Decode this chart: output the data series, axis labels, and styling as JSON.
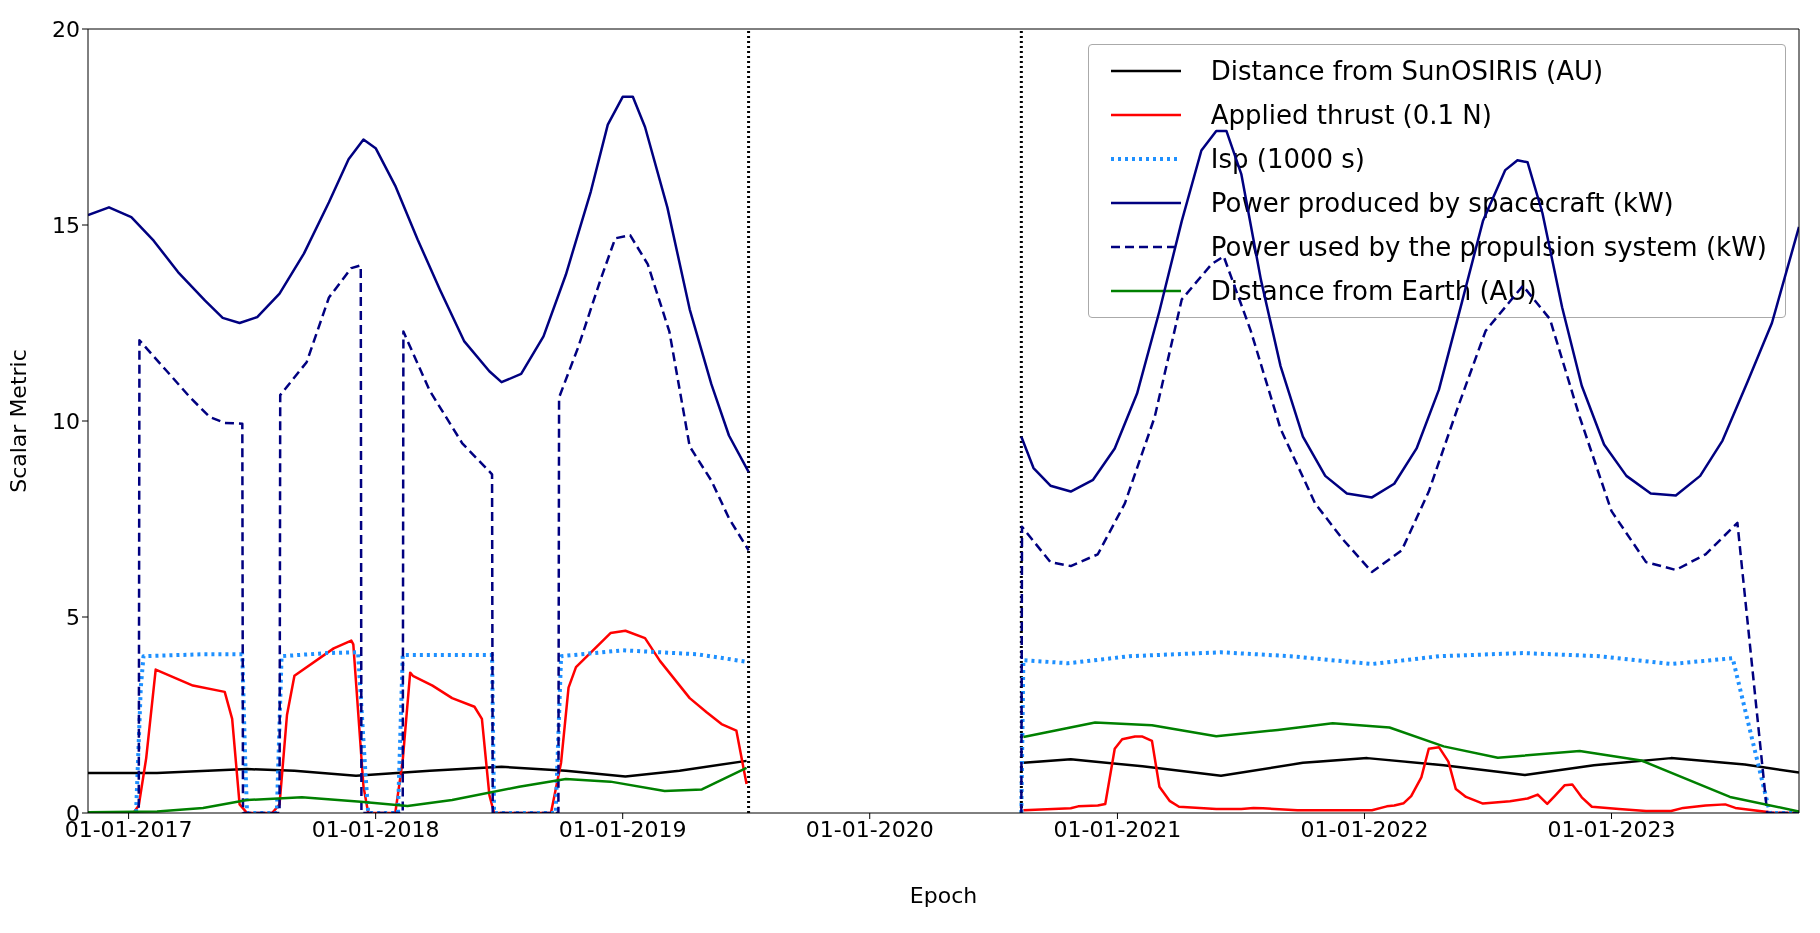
{
  "chart_data": {
    "type": "line",
    "xlabel": "Epoch",
    "ylabel": "Scalar Metric",
    "xlim": [
      "2016-11-02",
      "2023-10-05"
    ],
    "xticks": [
      {
        "value": "2017-01-01",
        "label": "01-01-2017"
      },
      {
        "value": "2018-01-01",
        "label": "01-01-2018"
      },
      {
        "value": "2019-01-01",
        "label": "01-01-2019"
      },
      {
        "value": "2020-01-01",
        "label": "01-01-2020"
      },
      {
        "value": "2021-01-01",
        "label": "01-01-2021"
      },
      {
        "value": "2022-01-01",
        "label": "01-01-2022"
      },
      {
        "value": "2023-01-01",
        "label": "01-01-2023"
      }
    ],
    "ylim": [
      0,
      20
    ],
    "yticks": [
      0,
      5,
      10,
      15,
      20
    ],
    "grid": false,
    "legend": "top right",
    "marker": "none",
    "ref_lines": [
      {
        "axis": "x",
        "value": "2019-07-06",
        "color": "#000000",
        "line_style": "dotted"
      },
      {
        "axis": "x",
        "value": "2020-08-12",
        "color": "#000000",
        "line_style": "dotted"
      }
    ],
    "series": [
      {
        "name": "Distance from SunOSIRIS (AU)",
        "color": "#000000",
        "line_style": "solid",
        "x": [
          "2016-11-02",
          "2017-02-12",
          "2017-06-25",
          "2017-09-03",
          "2017-12-03",
          "2018-03-22",
          "2018-07-06",
          "2018-10-09",
          "2019-01-05",
          "2019-03-26",
          "2019-07-03",
          "2020-01-01",
          "2020-08-15",
          "2020-10-24",
          "2021-02-07",
          "2021-06-03",
          "2021-10-02",
          "2022-01-05",
          "2022-04-28",
          "2022-08-26",
          "2022-12-06",
          "2023-03-30",
          "2023-07-17",
          "2023-10-05"
        ],
        "values": [
          1.02,
          1.02,
          1.12,
          1.08,
          0.95,
          1.08,
          1.18,
          1.08,
          0.93,
          1.08,
          1.33,
          null,
          1.28,
          1.37,
          1.19,
          0.95,
          1.28,
          1.4,
          1.22,
          0.97,
          1.22,
          1.4,
          1.24,
          1.03
        ]
      },
      {
        "name": "Applied thrust (0.1 N)",
        "color": "#ff0000",
        "line_style": "solid",
        "x": [
          "2016-11-02",
          "2017-01-08",
          "2017-01-16",
          "2017-01-27",
          "2017-02-10",
          "2017-04-06",
          "2017-05-23",
          "2017-06-03",
          "2017-06-14",
          "2017-06-25",
          "2017-08-01",
          "2017-08-12",
          "2017-08-23",
          "2017-09-03",
          "2017-10-31",
          "2017-11-26",
          "2017-11-29",
          "2017-12-14",
          "2017-12-21",
          "2018-01-30",
          "2018-02-10",
          "2018-02-21",
          "2018-02-25",
          "2018-03-26",
          "2018-04-24",
          "2018-05-27",
          "2018-06-07",
          "2018-06-18",
          "2018-06-25",
          "2018-09-17",
          "2018-10-02",
          "2018-10-13",
          "2018-10-24",
          "2018-12-14",
          "2019-01-05",
          "2019-02-03",
          "2019-02-25",
          "2019-04-10",
          "2019-05-05",
          "2019-05-27",
          "2019-06-18",
          "2019-07-03",
          "2020-01-01",
          "2020-08-15",
          "2020-10-24",
          "2020-11-04",
          "2020-12-03",
          "2020-12-14",
          "2020-12-28",
          "2021-01-08",
          "2021-01-27",
          "2021-02-07",
          "2021-02-21",
          "2021-03-04",
          "2021-03-19",
          "2021-04-02",
          "2021-05-27",
          "2021-07-03",
          "2021-07-21",
          "2021-08-04",
          "2021-09-24",
          "2022-01-12",
          "2022-02-03",
          "2022-02-14",
          "2022-02-28",
          "2022-03-11",
          "2022-03-26",
          "2022-04-06",
          "2022-04-21",
          "2022-05-05",
          "2022-05-16",
          "2022-05-31",
          "2022-06-25",
          "2022-08-04",
          "2022-08-30",
          "2022-09-14",
          "2022-09-28",
          "2022-10-09",
          "2022-10-24",
          "2022-11-04",
          "2022-11-18",
          "2022-12-03",
          "2023-01-12",
          "2023-02-21",
          "2023-03-30",
          "2023-04-17",
          "2023-05-20",
          "2023-06-18",
          "2023-07-03",
          "2023-08-26",
          "2023-10-05"
        ],
        "values": [
          0,
          0,
          0.19,
          1.4,
          3.66,
          3.25,
          3.09,
          2.4,
          0.22,
          0,
          0,
          0.22,
          2.5,
          3.5,
          4.2,
          4.4,
          4.3,
          0.68,
          0,
          0,
          1.34,
          3.58,
          3.5,
          3.25,
          2.93,
          2.71,
          2.4,
          0.46,
          0,
          0,
          1.29,
          3.2,
          3.72,
          4.59,
          4.65,
          4.46,
          3.88,
          2.93,
          2.57,
          2.27,
          2.1,
          0.74,
          null,
          0.07,
          0.12,
          0.17,
          0.19,
          0.23,
          1.64,
          1.88,
          1.95,
          1.95,
          1.84,
          0.67,
          0.31,
          0.16,
          0.1,
          0.1,
          0.13,
          0.12,
          0.07,
          0.07,
          0.17,
          0.19,
          0.25,
          0.43,
          0.91,
          1.64,
          1.68,
          1.31,
          0.61,
          0.41,
          0.24,
          0.3,
          0.37,
          0.47,
          0.23,
          0.43,
          0.71,
          0.73,
          0.4,
          0.16,
          0.1,
          0.05,
          0.05,
          0.13,
          0.19,
          0.22,
          0.13,
          0.01,
          0
        ]
      },
      {
        "name": "Isp (1000 s)",
        "color": "#1e90ff",
        "line_style": "dotted",
        "x": [
          "2016-11-02",
          "2017-01-12",
          "2017-01-19",
          "2017-01-23",
          "2017-04-21",
          "2017-06-18",
          "2017-06-22",
          "2017-06-25",
          "2017-08-08",
          "2017-08-15",
          "2017-10-20",
          "2017-12-06",
          "2017-12-17",
          "2017-12-21",
          "2018-02-03",
          "2018-02-10",
          "2018-06-22",
          "2018-06-25",
          "2018-09-24",
          "2018-10-02",
          "2019-01-01",
          "2019-04-21",
          "2019-07-06",
          "2020-01-01",
          "2020-08-12",
          "2020-08-15",
          "2020-10-20",
          "2021-01-19",
          "2021-06-03",
          "2021-09-14",
          "2022-01-12",
          "2022-04-21",
          "2022-08-23",
          "2022-12-14",
          "2023-03-30",
          "2023-06-29",
          "2023-08-23",
          "2023-10-05"
        ],
        "values": [
          0,
          0,
          3.2,
          4.0,
          4.05,
          4.05,
          1.5,
          0,
          0,
          4.0,
          4.08,
          4.1,
          1.0,
          0,
          0,
          4.03,
          4.03,
          0,
          0,
          4.0,
          4.15,
          4.05,
          3.85,
          null,
          0,
          3.9,
          3.82,
          4.0,
          4.1,
          4.0,
          3.8,
          4.0,
          4.08,
          4.0,
          3.8,
          3.95,
          0,
          0
        ]
      },
      {
        "name": "Power produced by spacecraft (kW)",
        "color": "#000080",
        "line_style": "solid",
        "x": [
          "2016-11-02",
          "2016-12-03",
          "2017-01-05",
          "2017-02-07",
          "2017-03-15",
          "2017-04-24",
          "2017-05-20",
          "2017-06-14",
          "2017-07-10",
          "2017-08-12",
          "2017-09-17",
          "2017-10-24",
          "2017-11-22",
          "2017-12-14",
          "2018-01-01",
          "2018-01-30",
          "2018-03-04",
          "2018-04-06",
          "2018-05-12",
          "2018-06-18",
          "2018-07-06",
          "2018-08-04",
          "2018-09-06",
          "2018-10-09",
          "2018-11-15",
          "2018-12-10",
          "2019-01-01",
          "2019-01-16",
          "2019-02-03",
          "2019-03-08",
          "2019-04-10",
          "2019-05-12",
          "2019-06-07",
          "2019-07-06",
          "2020-01-01",
          "2020-08-12",
          "2020-08-30",
          "2020-09-24",
          "2020-10-24",
          "2020-11-26",
          "2020-12-28",
          "2021-01-30",
          "2021-03-04",
          "2021-04-06",
          "2021-05-05",
          "2021-05-27",
          "2021-06-11",
          "2021-07-03",
          "2021-08-01",
          "2021-08-30",
          "2021-10-02",
          "2021-11-04",
          "2021-12-06",
          "2022-01-12",
          "2022-02-14",
          "2022-03-19",
          "2022-04-21",
          "2022-05-23",
          "2022-06-25",
          "2022-07-28",
          "2022-08-15",
          "2022-08-30",
          "2022-09-21",
          "2022-10-20",
          "2022-11-18",
          "2022-12-21",
          "2023-01-23",
          "2023-02-28",
          "2023-04-06",
          "2023-05-12",
          "2023-06-14",
          "2023-07-21",
          "2023-08-26",
          "2023-10-05"
        ],
        "values": [
          15.25,
          15.45,
          15.2,
          14.6,
          13.8,
          13.07,
          12.63,
          12.5,
          12.65,
          13.25,
          14.27,
          15.58,
          16.68,
          17.18,
          16.96,
          16.0,
          14.63,
          13.35,
          12.03,
          11.27,
          10.99,
          11.2,
          12.16,
          13.73,
          15.86,
          17.56,
          18.27,
          18.27,
          17.5,
          15.45,
          12.85,
          10.94,
          9.63,
          8.7,
          null,
          9.6,
          8.8,
          8.35,
          8.2,
          8.5,
          9.3,
          10.7,
          12.8,
          15.1,
          16.9,
          17.4,
          17.4,
          16.3,
          13.6,
          11.4,
          9.6,
          8.6,
          8.15,
          8.05,
          8.4,
          9.3,
          10.8,
          12.9,
          15.1,
          16.4,
          16.65,
          16.6,
          15.3,
          12.9,
          10.9,
          9.4,
          8.6,
          8.15,
          8.1,
          8.6,
          9.5,
          11.0,
          12.5,
          14.95
        ]
      },
      {
        "name": "Power used by the propulsion system (kW)",
        "color": "#000080",
        "line_style": "dashed",
        "x": [
          "2016-11-02",
          "2017-01-16",
          "2017-01-17",
          "2017-02-25",
          "2017-04-02",
          "2017-05-01",
          "2017-05-23",
          "2017-06-18",
          "2017-06-19",
          "2017-08-12",
          "2017-08-13",
          "2017-09-21",
          "2017-10-24",
          "2017-11-26",
          "2017-12-10",
          "2017-12-11",
          "2018-02-10",
          "2018-02-11",
          "2018-03-22",
          "2018-05-09",
          "2018-06-22",
          "2018-06-23",
          "2018-09-28",
          "2018-09-29",
          "2018-10-27",
          "2018-11-29",
          "2018-12-21",
          "2019-01-12",
          "2019-02-07",
          "2019-03-11",
          "2019-04-10",
          "2019-05-12",
          "2019-06-07",
          "2019-07-06",
          "2020-01-01",
          "2020-08-12",
          "2020-08-13",
          "2020-09-24",
          "2020-10-24",
          "2020-12-03",
          "2021-01-12",
          "2021-02-25",
          "2021-04-06",
          "2021-05-20",
          "2021-06-07",
          "2021-07-17",
          "2021-08-30",
          "2021-10-20",
          "2021-11-29",
          "2022-01-12",
          "2022-02-25",
          "2022-04-06",
          "2022-05-20",
          "2022-06-29",
          "2022-08-23",
          "2022-10-02",
          "2022-11-15",
          "2023-01-01",
          "2023-02-21",
          "2023-04-06",
          "2023-05-20",
          "2023-07-06",
          "2023-08-19",
          "2023-10-05"
        ],
        "values": [
          0,
          0,
          12.06,
          11.3,
          10.6,
          10.1,
          9.95,
          9.93,
          0,
          0,
          10.66,
          11.5,
          13.15,
          13.9,
          13.97,
          0,
          0,
          12.28,
          10.77,
          9.43,
          8.64,
          0,
          0,
          10.6,
          11.87,
          13.59,
          14.66,
          14.74,
          14.0,
          12.28,
          9.35,
          8.48,
          7.52,
          6.7,
          null,
          0,
          7.3,
          6.4,
          6.3,
          6.6,
          7.9,
          10.1,
          13.1,
          14.0,
          14.2,
          12.3,
          9.8,
          7.9,
          7.0,
          6.15,
          6.7,
          8.2,
          10.4,
          12.3,
          13.45,
          12.6,
          10.1,
          7.7,
          6.4,
          6.2,
          6.6,
          7.4,
          0,
          0
        ]
      },
      {
        "name": "Distance from Earth (AU)",
        "color": "#008000",
        "line_style": "solid",
        "x": [
          "2016-11-02",
          "2017-02-12",
          "2017-04-21",
          "2017-06-25",
          "2017-09-14",
          "2017-12-10",
          "2018-02-17",
          "2018-04-24",
          "2018-08-01",
          "2018-10-09",
          "2018-12-14",
          "2019-03-04",
          "2019-04-28",
          "2019-07-03",
          "2020-01-01",
          "2020-08-15",
          "2020-11-29",
          "2021-02-21",
          "2021-05-27",
          "2021-08-26",
          "2021-11-15",
          "2022-02-07",
          "2022-04-28",
          "2022-07-17",
          "2022-11-15",
          "2023-02-14",
          "2023-06-25",
          "2023-10-05"
        ],
        "values": [
          0.02,
          0.04,
          0.13,
          0.33,
          0.4,
          0.29,
          0.18,
          0.33,
          0.67,
          0.87,
          0.8,
          0.56,
          0.6,
          1.15,
          null,
          1.94,
          2.31,
          2.24,
          1.96,
          2.12,
          2.29,
          2.18,
          1.7,
          1.41,
          1.58,
          1.34,
          0.41,
          0.04
        ]
      }
    ]
  }
}
